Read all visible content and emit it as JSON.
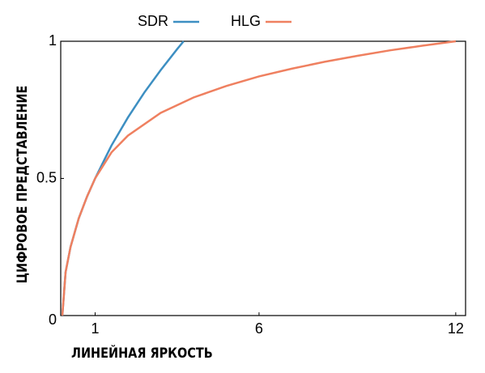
{
  "chart_data": {
    "type": "line",
    "xlabel": "ЛИНЕЙНАЯ ЯРКОСТЬ",
    "ylabel": "ЦИФРОВОЕ ПРЕДСТАВЛЕНИЕ",
    "xlim": [
      0,
      12.3
    ],
    "ylim": [
      0,
      1
    ],
    "xticks": [
      1,
      6,
      12
    ],
    "yticks": [
      0,
      0.5,
      1
    ],
    "grid": false,
    "legend": "top",
    "series": [
      {
        "name": "SDR",
        "color": "#3d8fc2",
        "x": [
          0,
          0.1,
          0.25,
          0.5,
          0.75,
          1,
          1.5,
          2,
          2.5,
          3,
          3.5,
          3.7
        ],
        "values": [
          0,
          0.158,
          0.25,
          0.354,
          0.433,
          0.5,
          0.62,
          0.722,
          0.813,
          0.895,
          0.971,
          1
        ]
      },
      {
        "name": "HLG",
        "color": "#ef8060",
        "x": [
          0,
          0.1,
          0.25,
          0.5,
          0.75,
          1,
          1.5,
          2,
          3,
          4,
          5,
          6,
          7,
          8,
          9,
          10,
          11,
          12
        ],
        "values": [
          0,
          0.158,
          0.25,
          0.354,
          0.433,
          0.5,
          0.595,
          0.656,
          0.739,
          0.795,
          0.837,
          0.872,
          0.9,
          0.925,
          0.947,
          0.967,
          0.984,
          1
        ]
      }
    ]
  }
}
